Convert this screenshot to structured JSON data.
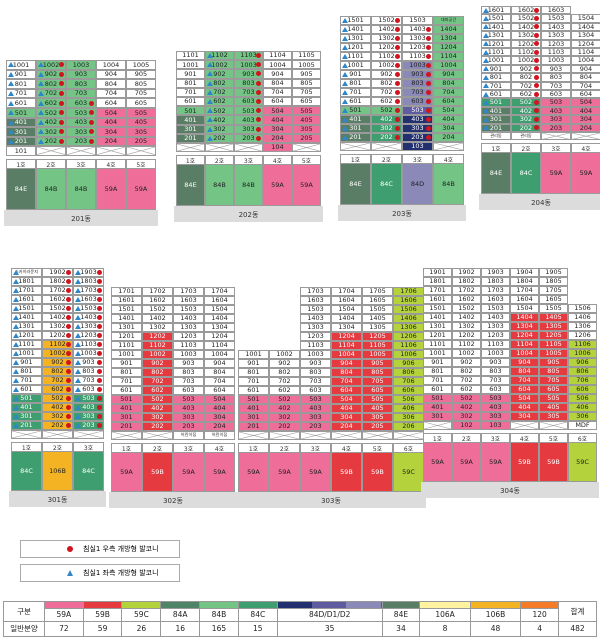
{
  "colors": {
    "59A": "#ee6e99",
    "59B": "#e53a40",
    "59C": "#b4d23c",
    "84A": "#4f8466",
    "84B": "#74c486",
    "84C": "#3e9e6f",
    "84D1": "#22306f",
    "84D2": "#5e5b9e",
    "84D": "#8a89b8",
    "84E": "#5a7e65",
    "106A": "#fff3a1",
    "106B": "#f3b323",
    "120": "#f47b28",
    "white": "#ffffff",
    "blue": "#2f86c9",
    "red": "#d2141e"
  },
  "legend": {
    "red_label": "침실1 우측 개방형 발코니",
    "blue_label": "침실1 좌측 개방형 발코니"
  },
  "tally": {
    "head_label": "구분",
    "row_label": "일반분양",
    "total_label": "합계",
    "types": [
      "59A",
      "59B",
      "59C",
      "84A",
      "84B",
      "84C",
      "84D/D1/D2",
      "84E",
      "106A",
      "106B",
      "120"
    ],
    "counts": [
      "72",
      "59",
      "26",
      "16",
      "165",
      "15",
      "35",
      "34",
      "8",
      "48",
      "4"
    ],
    "total": "482"
  },
  "buildings": [
    {
      "name": "201동",
      "type_row": [
        "84E",
        "84B",
        "84B",
        "59A",
        "59A"
      ],
      "lines": [
        "1호",
        "2호",
        "3호",
        "4호",
        "5호"
      ],
      "top_floor": [
        10,
        10,
        10,
        10,
        10
      ],
      "colors": [
        [
          "white",
          "84B",
          "84B",
          "white",
          "white"
        ],
        [
          "white",
          "84B",
          "84B",
          "white",
          "white"
        ],
        [
          "white",
          "84B",
          "84B",
          "white",
          "white"
        ],
        [
          "white",
          "84B",
          "84B",
          "white",
          "white"
        ],
        [
          "white",
          "84B",
          "84B",
          "white",
          "white"
        ],
        [
          "84B",
          "84B",
          "84B",
          "59A",
          "59A"
        ],
        [
          "84E",
          "84B",
          "84B",
          "59A",
          "59A"
        ],
        [
          "84E",
          "84B",
          "84B",
          "59A",
          "59A"
        ],
        [
          "84E",
          "84B",
          "84B",
          "59A",
          "59A"
        ],
        [
          "84E",
          "84B",
          "84B",
          "59A",
          "59A"
        ]
      ],
      "bottom": [
        "101"
      ]
    },
    {
      "name": "202동",
      "type_row": [
        "84E",
        "84B",
        "84B",
        "59A",
        "59A"
      ],
      "lines": [
        "1호",
        "2호",
        "3호",
        "4호",
        "5호"
      ],
      "top_floor": [
        11,
        11,
        11,
        11,
        11
      ],
      "bottom": [
        "104"
      ]
    },
    {
      "name": "203동",
      "type_row": [
        "84E",
        "84C",
        "84D",
        "84B"
      ],
      "lines": [
        "1호",
        "2호",
        "3호",
        "4호"
      ],
      "type_row_d": [
        "84D2",
        "84D1",
        "84D"
      ],
      "top_labels": [
        "1501",
        "1502",
        "1503",
        "대피공간"
      ],
      "bottom": [
        "103"
      ]
    },
    {
      "name": "204동",
      "type_row": [
        "84E",
        "84C",
        "59A",
        "59A"
      ],
      "lines": [
        "1호",
        "2호",
        "3호",
        "4호"
      ],
      "top_labels": [
        "1601",
        "1602",
        "1603"
      ],
      "bottom": [
        "관리동",
        "관리동"
      ]
    },
    {
      "name": "301동",
      "type_row": [
        "84C",
        "106B",
        "84C"
      ],
      "lines": [
        "1호",
        "2호",
        "3호"
      ],
      "top_labels": [
        "스카이라운지",
        "1902",
        "1903"
      ]
    },
    {
      "name": "302동",
      "type_row": [
        "59A",
        "59B",
        "59A",
        "59A"
      ],
      "lines": [
        "1호",
        "2호",
        "3호",
        "4호"
      ],
      "bottom": [
        "어린이집",
        "어린이집"
      ]
    },
    {
      "name": "303동",
      "type_row": [
        "59A",
        "59A",
        "59A",
        "59B",
        "59B",
        "59C"
      ],
      "lines": [
        "1호",
        "2호",
        "3호",
        "4호",
        "5호",
        "6호"
      ]
    },
    {
      "name": "304동",
      "type_row": [
        "59A",
        "59A",
        "59A",
        "59B",
        "59B",
        "59C"
      ],
      "lines": [
        "1호",
        "2호",
        "3호",
        "4호",
        "5호",
        "6호"
      ],
      "bottom": [
        "102",
        "103",
        "MDF"
      ]
    }
  ]
}
